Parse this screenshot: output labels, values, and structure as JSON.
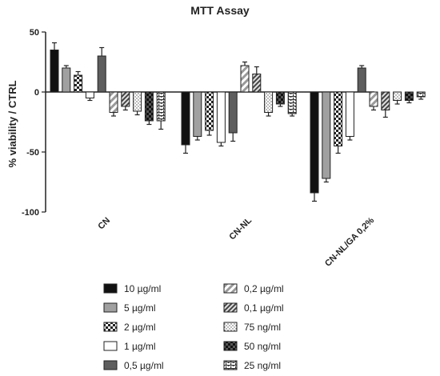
{
  "chart_data": {
    "type": "bar",
    "title": "MTT Assay",
    "xlabel": "",
    "ylabel": "% viability / CTRL",
    "ylim": [
      -100,
      50
    ],
    "yticks": [
      "50",
      "0",
      "-50",
      "-100"
    ],
    "categories": [
      "CN",
      "CN-NL",
      "CN-NL/GA 0,2%"
    ],
    "error_bars": true,
    "grid": false,
    "legend_position": "bottom",
    "series": [
      {
        "name": "10 µg/ml",
        "pattern": "solid-black",
        "values": [
          35,
          -44,
          -84
        ],
        "errors": [
          6,
          7,
          7
        ]
      },
      {
        "name": "5 µg/ml",
        "pattern": "solid-gray",
        "values": [
          20,
          -37,
          -72
        ],
        "errors": [
          2,
          3,
          3
        ]
      },
      {
        "name": "2 µg/ml",
        "pattern": "checker",
        "values": [
          14,
          -32,
          -45
        ],
        "errors": [
          3,
          4,
          6
        ]
      },
      {
        "name": "1 µg/ml",
        "pattern": "white",
        "values": [
          -5,
          -42,
          -37
        ],
        "errors": [
          2,
          3,
          3
        ]
      },
      {
        "name": "0,5 µg/ml",
        "pattern": "solid-dark",
        "values": [
          30,
          -34,
          20
        ],
        "errors": [
          7,
          7,
          2
        ]
      },
      {
        "name": "0,2 µg/ml",
        "pattern": "diag-light",
        "values": [
          -17,
          22,
          -12
        ],
        "errors": [
          3,
          3,
          3
        ]
      },
      {
        "name": "0,1 µg/ml",
        "pattern": "diag-dense",
        "values": [
          -12,
          15,
          -15
        ],
        "errors": [
          3,
          6,
          6
        ]
      },
      {
        "name": "75 ng/ml",
        "pattern": "dots",
        "values": [
          -16,
          -17,
          -7
        ],
        "errors": [
          3,
          3,
          3
        ]
      },
      {
        "name": "50 ng/ml",
        "pattern": "dark-checker",
        "values": [
          -24,
          -10,
          -7
        ],
        "errors": [
          3,
          2,
          2
        ]
      },
      {
        "name": "25 ng/ml",
        "pattern": "bricks",
        "values": [
          -24,
          -18,
          -4
        ],
        "errors": [
          7,
          2,
          2
        ]
      }
    ]
  }
}
